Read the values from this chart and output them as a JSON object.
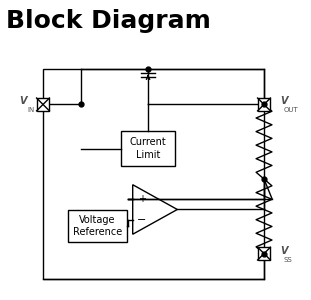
{
  "title": "Block Diagram",
  "title_fontsize": 18,
  "title_fontweight": "bold",
  "bg_color": "#ffffff",
  "line_color": "#000000",
  "text_color": "#000000",
  "current_limit_text": "Current\nLimit",
  "voltage_ref_text": "Voltage\nReference",
  "opamp_plus": "+",
  "opamp_minus": "−",
  "vin_text": "V",
  "vin_sub": "IN",
  "vout_text": "V",
  "vout_sub": "OUT",
  "vss_text": "V",
  "vss_sub": "SS"
}
